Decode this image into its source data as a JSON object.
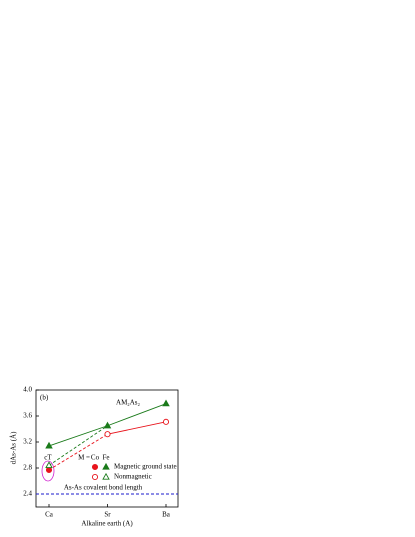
{
  "chart_data": {
    "type": "line",
    "title": "AM₂As₂",
    "panel_label": "(b)",
    "x_label": "Alkaline earth (A)",
    "y_label": "dAs-As (Å)",
    "categories": [
      "Ca",
      "Sr",
      "Ba"
    ],
    "ylim": [
      2.2,
      4.0
    ],
    "yticks": [
      2.4,
      2.8,
      3.2,
      3.6,
      {
        "value": 4,
        "label": "4.0"
      }
    ],
    "series": [
      {
        "metal": "Co",
        "state": "Magnetic ground state",
        "color": "#e8141c",
        "marker": "filled-circle",
        "line": "none",
        "values": [
          2.77,
          null,
          null
        ]
      },
      {
        "metal": "Co",
        "state": "Nonmagnetic",
        "color": "#e8141c",
        "marker": "open-circle",
        "line": "solid",
        "values": [
          null,
          3.32,
          3.51
        ]
      },
      {
        "metal": "Fe",
        "state": "Magnetic ground state",
        "color": "#1a7a1a",
        "marker": "filled-triangle",
        "line": "solid",
        "values": [
          3.14,
          3.45,
          3.79
        ]
      },
      {
        "metal": "Fe",
        "state": "Nonmagnetic",
        "color": "#1a7a1a",
        "marker": "open-triangle",
        "line": "none",
        "values": [
          2.84,
          null,
          null
        ]
      },
      {
        "color": "#e8141c",
        "marker": "none",
        "line": "dashed",
        "values": [
          2.77,
          3.32,
          null
        ]
      },
      {
        "color": "#1a7a1a",
        "marker": "none",
        "line": "dashed",
        "values": [
          2.84,
          3.45,
          null
        ]
      }
    ],
    "legend_prefix": "M =",
    "ct_label": "cT",
    "ct_color": "#d020d0",
    "reference_line": {
      "value": 2.4,
      "label": "As-As covalent bond length",
      "color": "#1a1acc"
    }
  }
}
